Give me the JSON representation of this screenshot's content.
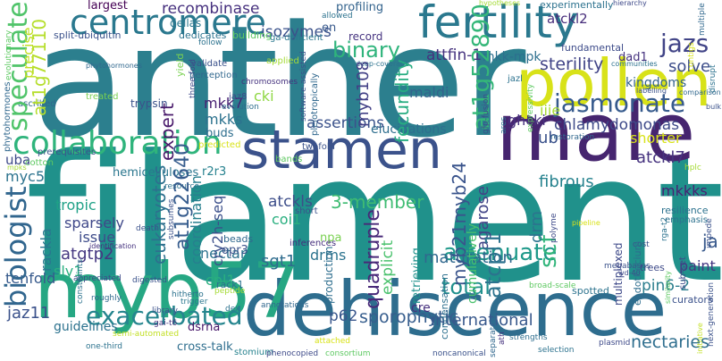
{
  "words": [
    {
      "text": "anther",
      "color": "#2c7f8e"
    },
    {
      "text": "filament",
      "color": "#20918b"
    },
    {
      "text": "dehiscence",
      "color": "#2e6d8e"
    },
    {
      "text": "stamen",
      "color": "#3b528b"
    },
    {
      "text": "male",
      "color": "#46256f"
    },
    {
      "text": "pollen",
      "color": "#d8e219"
    },
    {
      "text": "myb57",
      "color": "#26a783"
    },
    {
      "text": "fertility",
      "color": "#2a788e"
    },
    {
      "text": "centromere",
      "color": "#2a788e"
    },
    {
      "text": "collaboration",
      "color": "#2fb47c"
    },
    {
      "text": "jasmonate",
      "color": "#375b8d"
    },
    {
      "text": "exacerbated",
      "color": "#25858e"
    },
    {
      "text": "attenuate",
      "color": "#1f998a"
    },
    {
      "text": "total",
      "color": "#21908d"
    },
    {
      "text": "biologist",
      "color": "#31668e"
    },
    {
      "text": "speculate",
      "color": "#50c46a"
    },
    {
      "text": "jazs",
      "color": "#414487"
    },
    {
      "text": "binary",
      "color": "#2fb47c"
    },
    {
      "text": "at1g52890",
      "color": "#35b779"
    },
    {
      "text": "at1g22640",
      "color": "#365c8d"
    },
    {
      "text": "at1g77110",
      "color": "#b5de2b"
    },
    {
      "text": "sterility",
      "color": "#414487"
    },
    {
      "text": "chlamydomonas",
      "color": "#3e4a89"
    },
    {
      "text": "coordination",
      "color": "#277f8e"
    },
    {
      "text": "sporophytic",
      "color": "#365d8d"
    },
    {
      "text": "nectaries",
      "color": "#2e6e8e"
    },
    {
      "text": "international",
      "color": "#38588c"
    },
    {
      "text": "myb108",
      "color": "#424086"
    },
    {
      "text": "eukaryotes",
      "color": "#2d708e"
    },
    {
      "text": "maturation",
      "color": "#31688e"
    },
    {
      "text": "3-member",
      "color": "#3fbc73"
    },
    {
      "text": "fibrous",
      "color": "#26828e"
    },
    {
      "text": "quadruple",
      "color": "#482878"
    },
    {
      "text": "atckls",
      "color": "#3d4e8a"
    },
    {
      "text": "atckl7",
      "color": "#46337f"
    },
    {
      "text": "mkkks",
      "color": "#482173"
    },
    {
      "text": "myc5",
      "color": "#2c738e"
    },
    {
      "text": "scf",
      "color": "#31b57b"
    },
    {
      "text": "p62",
      "color": "#39568c"
    },
    {
      "text": "sgt1",
      "color": "#2f6c8e"
    },
    {
      "text": "isozymes",
      "color": "#3b528b"
    },
    {
      "text": "recombinase",
      "color": "#46307e"
    },
    {
      "text": "largest",
      "color": "#440154"
    },
    {
      "text": "mkk7",
      "color": "#482173"
    },
    {
      "text": "mkks",
      "color": "#2c728e"
    },
    {
      "text": "cki",
      "color": "#8fd744"
    },
    {
      "text": "expert",
      "color": "#48186a"
    },
    {
      "text": "tropic",
      "color": "#1fa187"
    },
    {
      "text": "sparsely",
      "color": "#3f4889"
    },
    {
      "text": "issue",
      "color": "#3e4c8a"
    },
    {
      "text": "atgtp2",
      "color": "#453781"
    },
    {
      "text": "sly1",
      "color": "#2ab07f"
    },
    {
      "text": "tenfold",
      "color": "#375a8c"
    },
    {
      "text": "jaz11",
      "color": "#3b528b"
    },
    {
      "text": "racklа",
      "color": "#2a768e"
    },
    {
      "text": "cry2h-seq",
      "color": "#3c508b"
    },
    {
      "text": "nectar",
      "color": "#2c738e"
    },
    {
      "text": "coi1",
      "color": "#29af7f"
    },
    {
      "text": "drms",
      "color": "#2c738e"
    },
    {
      "text": "explicit",
      "color": "#4ac16d"
    },
    {
      "text": "myb21myb24",
      "color": "#3a548c"
    },
    {
      "text": "agarose",
      "color": "#414487"
    },
    {
      "text": "atcpl1",
      "color": "#2c738e"
    },
    {
      "text": "paint",
      "color": "#453882"
    },
    {
      "text": "pin6-2",
      "color": "#2c7e8e"
    },
    {
      "text": "solve",
      "color": "#3d4d8a"
    },
    {
      "text": "kingdoms",
      "color": "#33628d"
    },
    {
      "text": "atckl2",
      "color": "#472d7b"
    },
    {
      "text": "attfin-1",
      "color": "#46337f"
    },
    {
      "text": "mkk-mpk",
      "color": "#2d6f8e"
    },
    {
      "text": "assertions",
      "color": "#3b528b"
    },
    {
      "text": "elucidations",
      "color": "#2e6e8e"
    },
    {
      "text": "ghcki",
      "color": "#46307e"
    },
    {
      "text": "iiie",
      "color": "#a8db34"
    },
    {
      "text": "maldi",
      "color": "#33638d"
    },
    {
      "text": "fecundity",
      "color": "#27ad81"
    },
    {
      "text": "ub",
      "color": "#3b528b"
    },
    {
      "text": "shorter",
      "color": "#d8e219"
    },
    {
      "text": "buds",
      "color": "#2e6e8e"
    },
    {
      "text": "hemicelluloses",
      "color": "#2a768e"
    },
    {
      "text": "r2r3",
      "color": "#26818e"
    },
    {
      "text": "uba",
      "color": "#3e4a89"
    },
    {
      "text": "ja",
      "color": "#38598c"
    },
    {
      "text": "guidelines",
      "color": "#2c728e"
    },
    {
      "text": "cross-talk",
      "color": "#2e6e8e"
    },
    {
      "text": "dsrna",
      "color": "#48186a"
    },
    {
      "text": "cpl1",
      "color": "#29af7f"
    },
    {
      "text": "opr3",
      "color": "#3b528b"
    },
    {
      "text": "npa",
      "color": "#7ad151"
    },
    {
      "text": "cre",
      "color": "#46307e"
    },
    {
      "text": "record",
      "color": "#463480"
    },
    {
      "text": "en",
      "color": "#38598c"
    },
    {
      "text": "precise",
      "color": "#c2df23"
    },
    {
      "text": "drm",
      "color": "#2c738e"
    },
    {
      "text": "cumulatively",
      "color": "#4ac16d"
    },
    {
      "text": "retrieving",
      "color": "#20928c"
    },
    {
      "text": "production",
      "color": "#2e6e8e"
    },
    {
      "text": "condensation",
      "color": "#2d708e"
    },
    {
      "text": "multiplexed",
      "color": "#3e4989"
    },
    {
      "text": "endothecium",
      "color": "#2e6e8e"
    },
    {
      "text": "dad1",
      "color": "#46337f"
    },
    {
      "text": "profiling",
      "color": "#33638d"
    },
    {
      "text": "dellas",
      "color": "#2a778e"
    },
    {
      "text": "trypsin",
      "color": "#3b528b"
    },
    {
      "text": "stomium",
      "color": "#26828e"
    },
    {
      "text": "fundamental",
      "color": "#3e4c8a"
    },
    {
      "text": "experimentally",
      "color": "#2c728e"
    },
    {
      "text": "curators",
      "color": "#3b528b"
    },
    {
      "text": "trees",
      "color": "#3e4a89"
    },
    {
      "text": "spotted",
      "color": "#2c738e"
    },
    {
      "text": "rack1",
      "color": "#2c728e"
    },
    {
      "text": "beads",
      "color": "#31688e"
    },
    {
      "text": "inferences",
      "color": "#46307e"
    },
    {
      "text": "short",
      "color": "#3b528b"
    },
    {
      "text": "validate",
      "color": "#3b528b"
    },
    {
      "text": "perception",
      "color": "#31688e"
    },
    {
      "text": "yield",
      "color": "#7ad151"
    },
    {
      "text": "three-fold",
      "color": "#3e4a89"
    },
    {
      "text": "applied",
      "color": "#a5db36"
    },
    {
      "text": "treated",
      "color": "#7ad151"
    },
    {
      "text": "dedicates",
      "color": "#2c728e"
    },
    {
      "text": "building",
      "color": "#5ec962"
    },
    {
      "text": "ga-deficient",
      "color": "#2a778e"
    },
    {
      "text": "split-ubiquitin",
      "color": "#3b528b"
    },
    {
      "text": "ascribed",
      "color": "#31688e"
    },
    {
      "text": "follow",
      "color": "#2c728e"
    },
    {
      "text": "chromosomes",
      "color": "#46337f"
    },
    {
      "text": "evolution",
      "color": "#2e6e8e"
    },
    {
      "text": "jaz8",
      "color": "#3e4989"
    },
    {
      "text": "predicted",
      "color": "#d8e219"
    },
    {
      "text": "bands",
      "color": "#5ec962"
    },
    {
      "text": "twofold",
      "color": "#3b528b"
    },
    {
      "text": "resource",
      "color": "#2c728e"
    },
    {
      "text": "prerequisites",
      "color": "#3b528b"
    },
    {
      "text": "cotton",
      "color": "#5ec962"
    },
    {
      "text": "mpks",
      "color": "#a5db36"
    },
    {
      "text": "death",
      "color": "#3b528b"
    },
    {
      "text": "identification",
      "color": "#46337f"
    },
    {
      "text": "constraints",
      "color": "#2c728e"
    },
    {
      "text": "appreciated",
      "color": "#3e4a89"
    },
    {
      "text": "roughly",
      "color": "#31688e"
    },
    {
      "text": "digested",
      "color": "#3b528b"
    },
    {
      "text": "hitherto",
      "color": "#2c728e"
    },
    {
      "text": "trigger",
      "color": "#2a778e"
    },
    {
      "text": "peptide",
      "color": "#a5db36"
    },
    {
      "text": "annotations",
      "color": "#31688e"
    },
    {
      "text": "dex",
      "color": "#2c728e"
    },
    {
      "text": "library",
      "color": "#3b528b"
    },
    {
      "text": "one-third",
      "color": "#2c728e"
    },
    {
      "text": "gai-t6",
      "color": "#46337f"
    },
    {
      "text": "semi-automated",
      "color": "#c2df23"
    },
    {
      "text": "phenocopied",
      "color": "#3e4a89"
    },
    {
      "text": "attached",
      "color": "#d8e219"
    },
    {
      "text": "consortium",
      "color": "#5ec962"
    },
    {
      "text": "noncanonical",
      "color": "#3b528b"
    },
    {
      "text": "selection",
      "color": "#2c728e"
    },
    {
      "text": "strengths",
      "color": "#2e6e8e"
    },
    {
      "text": "plasmid",
      "color": "#3e4a89"
    },
    {
      "text": "broad-scale",
      "color": "#5ec962"
    },
    {
      "text": "resilience",
      "color": "#2c728e"
    },
    {
      "text": "emphasis",
      "color": "#2c728e"
    },
    {
      "text": "megabases",
      "color": "#3b528b"
    },
    {
      "text": "cost",
      "color": "#3b528b"
    },
    {
      "text": "wd-40",
      "color": "#3e4a89"
    },
    {
      "text": "hplc",
      "color": "#a5db36"
    },
    {
      "text": "similarity",
      "color": "#5ec962"
    },
    {
      "text": "sub-set",
      "color": "#3e4a89"
    },
    {
      "text": "restoration",
      "color": "#31688e"
    },
    {
      "text": "bulk",
      "color": "#3b528b"
    },
    {
      "text": "comparison",
      "color": "#31688e"
    },
    {
      "text": "labelling",
      "color": "#3b528b"
    },
    {
      "text": "disrupt",
      "color": "#2c728e"
    },
    {
      "text": "communities",
      "color": "#2c728e"
    },
    {
      "text": "hierarchy",
      "color": "#3e4989"
    },
    {
      "text": "allowed",
      "color": "#2c728e"
    },
    {
      "text": "hypotheses",
      "color": "#a5db36"
    },
    {
      "text": "evolutionary",
      "color": "#5ec962"
    },
    {
      "text": "phytohormones",
      "color": "#31688e"
    },
    {
      "text": "jazl",
      "color": "#2c728e"
    },
    {
      "text": "pleiotropically",
      "color": "#31688e"
    },
    {
      "text": "software-assisted",
      "color": "#3b528b"
    },
    {
      "text": "deep-coverage",
      "color": "#2c728e"
    },
    {
      "text": "rga-t2",
      "color": "#2c728e"
    },
    {
      "text": "next-generation",
      "color": "#3b528b"
    },
    {
      "text": "initiative",
      "color": "#c2df23"
    },
    {
      "text": "pipeline",
      "color": "#d8e219"
    },
    {
      "text": "impede",
      "color": "#3b528b"
    },
    {
      "text": "separately",
      "color": "#31688e"
    },
    {
      "text": "polyme",
      "color": "#3e4a89"
    },
    {
      "text": "ath",
      "color": "#46337f"
    },
    {
      "text": "ares",
      "color": "#2c728e"
    },
    {
      "text": "expressivity",
      "color": "#5ec962"
    },
    {
      "text": "gfp-fusion",
      "color": "#3e4a89"
    },
    {
      "text": "subsumes",
      "color": "#3b528b"
    },
    {
      "text": "contigs",
      "color": "#d8e219"
    },
    {
      "text": "multiple",
      "color": "#31688e"
    },
    {
      "text": "screens",
      "color": "#2c728e"
    }
  ]
}
